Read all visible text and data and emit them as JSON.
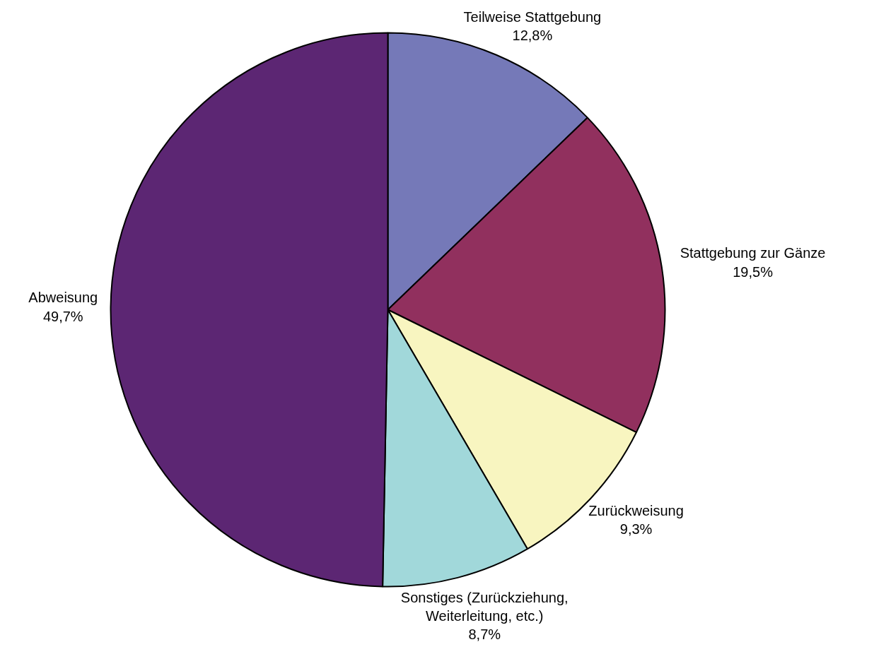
{
  "chart_data": {
    "type": "pie",
    "categories": [
      "Teilweise Stattgebung",
      "Stattgebung zur Gänze",
      "Zurückweisung",
      "Sonstiges (Zurückziehung, Weiterleitung, etc.)",
      "Abweisung"
    ],
    "values": [
      12.8,
      19.5,
      9.3,
      8.7,
      49.7
    ],
    "colors": [
      "#7579b8",
      "#91305e",
      "#f8f5c0",
      "#a1d8da",
      "#5c2673"
    ],
    "value_labels": [
      "12,8%",
      "19,5%",
      "9,3%",
      "8,7%",
      "49,7%"
    ]
  }
}
